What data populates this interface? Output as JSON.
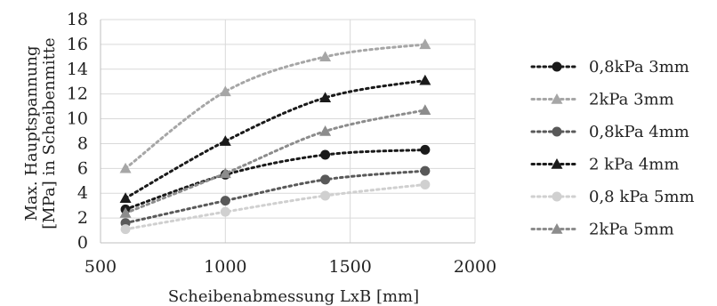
{
  "chart_data": {
    "type": "scatter",
    "title": "",
    "xlabel": "Scheibenabmessung LxB [mm]",
    "ylabel_lines": [
      "Max. Hauptspannung",
      "[MPa] in Scheibenmitte"
    ],
    "xlim": [
      500,
      2000
    ],
    "ylim": [
      0,
      18
    ],
    "xticks": [
      500,
      1000,
      1500,
      2000
    ],
    "yticks": [
      0,
      2,
      4,
      6,
      8,
      10,
      12,
      14,
      16,
      18
    ],
    "grid": true,
    "legend_position": "right",
    "series": [
      {
        "name": "0,8kPa 3mm",
        "marker": "circle",
        "color": "#1a1a1a",
        "x": [
          600,
          1000,
          1400,
          1800
        ],
        "y": [
          2.7,
          5.5,
          7.1,
          7.5
        ]
      },
      {
        "name": "2kPa 3mm",
        "marker": "triangle",
        "color": "#a6a6a6",
        "x": [
          600,
          1000,
          1400,
          1800
        ],
        "y": [
          6.0,
          12.2,
          15.0,
          16.0
        ]
      },
      {
        "name": "0,8kPa 4mm",
        "marker": "circle",
        "color": "#595959",
        "x": [
          600,
          1000,
          1400,
          1800
        ],
        "y": [
          1.6,
          3.4,
          5.1,
          5.8
        ]
      },
      {
        "name": "2 kPa 4mm",
        "marker": "triangle",
        "color": "#1a1a1a",
        "x": [
          600,
          1000,
          1400,
          1800
        ],
        "y": [
          3.6,
          8.2,
          11.7,
          13.1
        ]
      },
      {
        "name": "0,8 kPa 5mm",
        "marker": "circle",
        "color": "#d0d0d0",
        "x": [
          600,
          1000,
          1400,
          1800
        ],
        "y": [
          1.1,
          2.5,
          3.8,
          4.7
        ]
      },
      {
        "name": "2kPa 5mm",
        "marker": "triangle",
        "color": "#8c8c8c",
        "x": [
          600,
          1000,
          1400,
          1800
        ],
        "y": [
          2.4,
          5.6,
          9.0,
          10.7
        ]
      }
    ]
  }
}
